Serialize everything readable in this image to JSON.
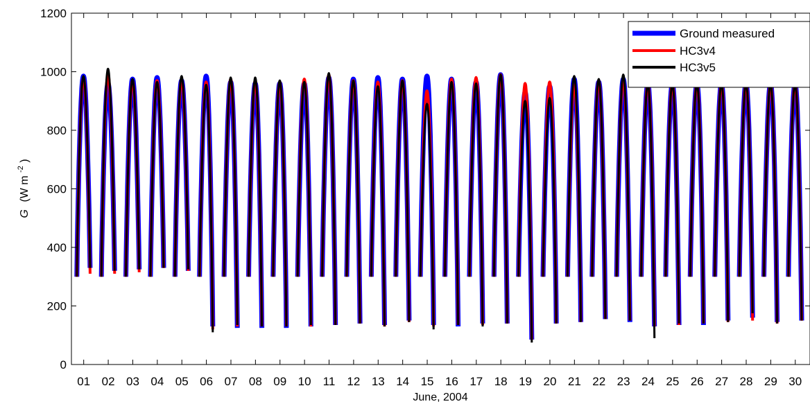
{
  "chart_data": {
    "type": "line",
    "xlabel": "June, 2004",
    "ylabel_symbol": "G",
    "ylabel_units": "(W m",
    "ylabel_exp": "-2",
    "ylabel_close": ")",
    "ylim": [
      0,
      1200
    ],
    "xlim": [
      0.5,
      30.6
    ],
    "yticks": [
      0,
      200,
      400,
      600,
      800,
      1000,
      1200
    ],
    "xticks": [
      "01",
      "02",
      "03",
      "04",
      "05",
      "06",
      "07",
      "08",
      "09",
      "10",
      "11",
      "12",
      "13",
      "14",
      "15",
      "16",
      "17",
      "18",
      "19",
      "20",
      "21",
      "22",
      "23",
      "24",
      "25",
      "26",
      "27",
      "28",
      "29",
      "30"
    ],
    "x_unit": "day of June 2004",
    "legend_position": "top-right",
    "series": [
      {
        "name": "Ground measured",
        "color": "#0000ff",
        "daily_peak": [
          985,
          960,
          975,
          980,
          970,
          985,
          965,
          960,
          960,
          960,
          980,
          975,
          980,
          975,
          985,
          975,
          965,
          990,
          930,
          950,
          975,
          965,
          975,
          960,
          960,
          960,
          960,
          960,
          960,
          960
        ],
        "daily_min_end": [
          330,
          320,
          325,
          330,
          320,
          130,
          125,
          125,
          125,
          130,
          135,
          140,
          135,
          150,
          135,
          130,
          140,
          140,
          85,
          140,
          145,
          155,
          145,
          130,
          135,
          135,
          150,
          160,
          145,
          150
        ]
      },
      {
        "name": "HC3v4",
        "color": "#ff0000",
        "daily_peak": [
          980,
          990,
          970,
          970,
          975,
          965,
          975,
          970,
          965,
          975,
          990,
          970,
          965,
          970,
          935,
          975,
          980,
          990,
          960,
          965,
          955,
          970,
          975,
          960,
          960,
          960,
          960,
          960,
          960,
          960
        ],
        "daily_min_end": [
          310,
          310,
          315,
          330,
          320,
          120,
          130,
          130,
          130,
          130,
          135,
          140,
          130,
          145,
          130,
          135,
          135,
          140,
          85,
          140,
          145,
          155,
          150,
          130,
          135,
          140,
          145,
          150,
          140,
          150
        ]
      },
      {
        "name": "HC3v5",
        "color": "#000000",
        "daily_peak": [
          985,
          1010,
          975,
          965,
          985,
          955,
          980,
          980,
          970,
          965,
          995,
          970,
          950,
          970,
          890,
          965,
          960,
          990,
          900,
          910,
          985,
          975,
          990,
          960,
          960,
          960,
          960,
          960,
          960,
          960
        ],
        "daily_min_end": [
          330,
          320,
          325,
          330,
          325,
          110,
          135,
          130,
          130,
          135,
          135,
          140,
          130,
          145,
          120,
          135,
          130,
          140,
          75,
          140,
          145,
          155,
          150,
          90,
          140,
          140,
          145,
          175,
          140,
          150
        ]
      }
    ]
  }
}
